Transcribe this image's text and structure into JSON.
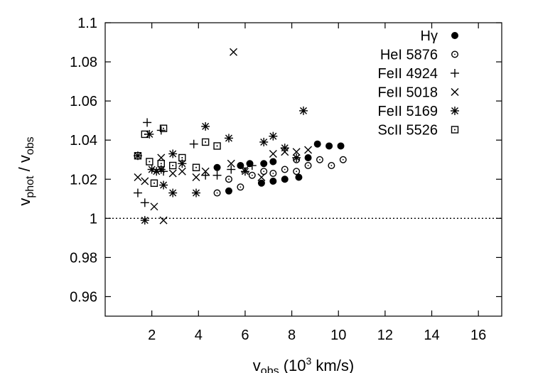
{
  "chart_data": {
    "type": "scatter",
    "xlim": [
      0,
      17
    ],
    "ylim": [
      0.95,
      1.1
    ],
    "xticks": [
      2,
      4,
      6,
      8,
      10,
      12,
      14,
      16
    ],
    "yticks": [
      0.96,
      0.98,
      1,
      1.02,
      1.04,
      1.06,
      1.08,
      1.1
    ],
    "xtick_labels": [
      "2",
      "4",
      "6",
      "8",
      "10",
      "12",
      "14",
      "16"
    ],
    "ytick_labels": [
      "0.96",
      "0.98",
      "1",
      "1.02",
      "1.04",
      "1.06",
      "1.08",
      "1.1"
    ],
    "xlabel": {
      "main": "v",
      "sub": "obs",
      "rest_before_sup": " (10",
      "sup": "3",
      "rest_after_sup": " km/s)"
    },
    "ylabel": {
      "v1": "v",
      "sub1": "phot",
      "sep": " / ",
      "v2": "v",
      "sub2": "obs"
    },
    "reference_line": {
      "y": 1,
      "style": "dotted"
    },
    "grid": false,
    "legend": "top-right",
    "series": [
      {
        "name": "Hγ",
        "marker": "filled-circle",
        "points": [
          [
            4.8,
            1.026
          ],
          [
            5.3,
            1.014
          ],
          [
            5.8,
            1.027
          ],
          [
            6.2,
            1.028
          ],
          [
            6.7,
            1.018
          ],
          [
            7.2,
            1.019
          ],
          [
            7.7,
            1.02
          ],
          [
            8.3,
            1.021
          ],
          [
            8.7,
            1.031
          ],
          [
            6.8,
            1.028
          ],
          [
            7.2,
            1.029
          ],
          [
            9.1,
            1.038
          ],
          [
            9.6,
            1.037
          ],
          [
            10.1,
            1.037
          ]
        ]
      },
      {
        "name": "HeI 5876",
        "marker": "open-circle",
        "points": [
          [
            4.8,
            1.013
          ],
          [
            5.3,
            1.02
          ],
          [
            5.8,
            1.016
          ],
          [
            6.3,
            1.022
          ],
          [
            6.8,
            1.024
          ],
          [
            7.2,
            1.023
          ],
          [
            7.7,
            1.025
          ],
          [
            8.2,
            1.024
          ],
          [
            8.2,
            1.03
          ],
          [
            8.7,
            1.027
          ],
          [
            9.2,
            1.03
          ],
          [
            9.7,
            1.027
          ],
          [
            10.2,
            1.03
          ]
        ]
      },
      {
        "name": "FeII 4924",
        "marker": "plus",
        "points": [
          [
            1.4,
            1.013
          ],
          [
            1.7,
            1.008
          ],
          [
            1.8,
            1.049
          ],
          [
            2.4,
            1.045
          ],
          [
            2.5,
            1.024
          ],
          [
            3.8,
            1.038
          ],
          [
            4.3,
            1.022
          ],
          [
            4.8,
            1.022
          ],
          [
            5.4,
            1.025
          ],
          [
            6.3,
            1.027
          ]
        ]
      },
      {
        "name": "FeII 5018",
        "marker": "cross",
        "points": [
          [
            1.4,
            1.021
          ],
          [
            1.7,
            1.019
          ],
          [
            2.1,
            1.006
          ],
          [
            2.5,
            0.999
          ],
          [
            2.4,
            1.031
          ],
          [
            2.9,
            1.023
          ],
          [
            3.3,
            1.024
          ],
          [
            3.9,
            1.021
          ],
          [
            4.3,
            1.024
          ],
          [
            5.4,
            1.028
          ],
          [
            5.5,
            1.085
          ],
          [
            6.0,
            1.025
          ],
          [
            6.7,
            1.021
          ],
          [
            7.2,
            1.033
          ],
          [
            7.7,
            1.034
          ],
          [
            8.2,
            1.034
          ],
          [
            8.7,
            1.035
          ]
        ]
      },
      {
        "name": "FeII 5169",
        "marker": "asterisk",
        "points": [
          [
            1.4,
            1.032
          ],
          [
            1.7,
            0.999
          ],
          [
            1.9,
            1.043
          ],
          [
            2.0,
            1.025
          ],
          [
            2.2,
            1.024
          ],
          [
            2.4,
            1.025
          ],
          [
            2.5,
            1.017
          ],
          [
            2.9,
            1.013
          ],
          [
            2.9,
            1.033
          ],
          [
            3.3,
            1.028
          ],
          [
            3.9,
            1.013
          ],
          [
            4.3,
            1.047
          ],
          [
            5.3,
            1.041
          ],
          [
            6.0,
            1.024
          ],
          [
            6.8,
            1.039
          ],
          [
            7.2,
            1.042
          ],
          [
            7.7,
            1.036
          ],
          [
            8.2,
            1.031
          ],
          [
            8.5,
            1.055
          ]
        ]
      },
      {
        "name": "ScII 5526",
        "marker": "open-square",
        "points": [
          [
            1.4,
            1.032
          ],
          [
            1.7,
            1.043
          ],
          [
            1.9,
            1.029
          ],
          [
            2.1,
            1.018
          ],
          [
            2.4,
            1.028
          ],
          [
            2.5,
            1.046
          ],
          [
            2.9,
            1.027
          ],
          [
            3.3,
            1.031
          ],
          [
            3.9,
            1.026
          ],
          [
            4.3,
            1.039
          ],
          [
            4.8,
            1.037
          ]
        ]
      }
    ]
  }
}
